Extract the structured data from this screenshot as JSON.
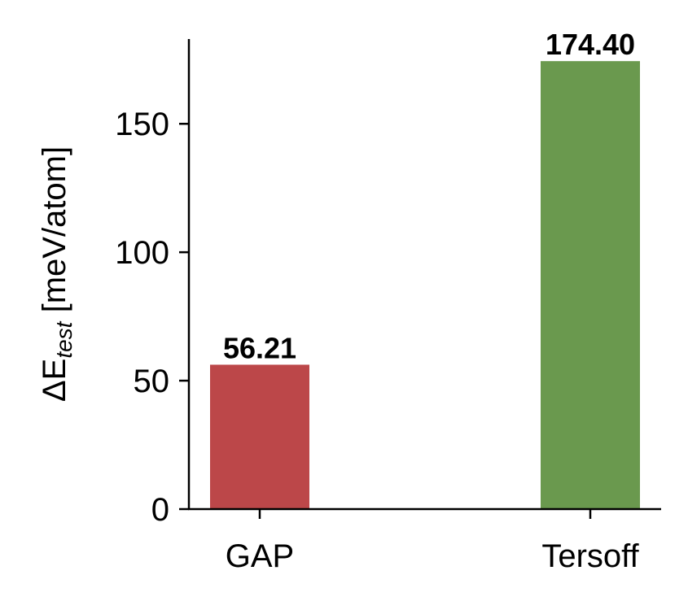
{
  "chart_data": {
    "type": "bar",
    "categories": [
      "GAP",
      "Tersoff"
    ],
    "values": [
      56.21,
      174.4
    ],
    "data_labels": [
      "56.21",
      "174.40"
    ],
    "colors": [
      "#bc4749",
      "#6a994e"
    ],
    "ylabel_main": "ΔE",
    "ylabel_sub": "test",
    "ylabel_unit": " [meV/atom]",
    "ylim": [
      0,
      183
    ],
    "yticks": [
      0,
      50,
      100,
      150
    ],
    "ytick_labels": [
      "0",
      "50",
      "100",
      "150"
    ],
    "grid": false,
    "legend": "none"
  }
}
